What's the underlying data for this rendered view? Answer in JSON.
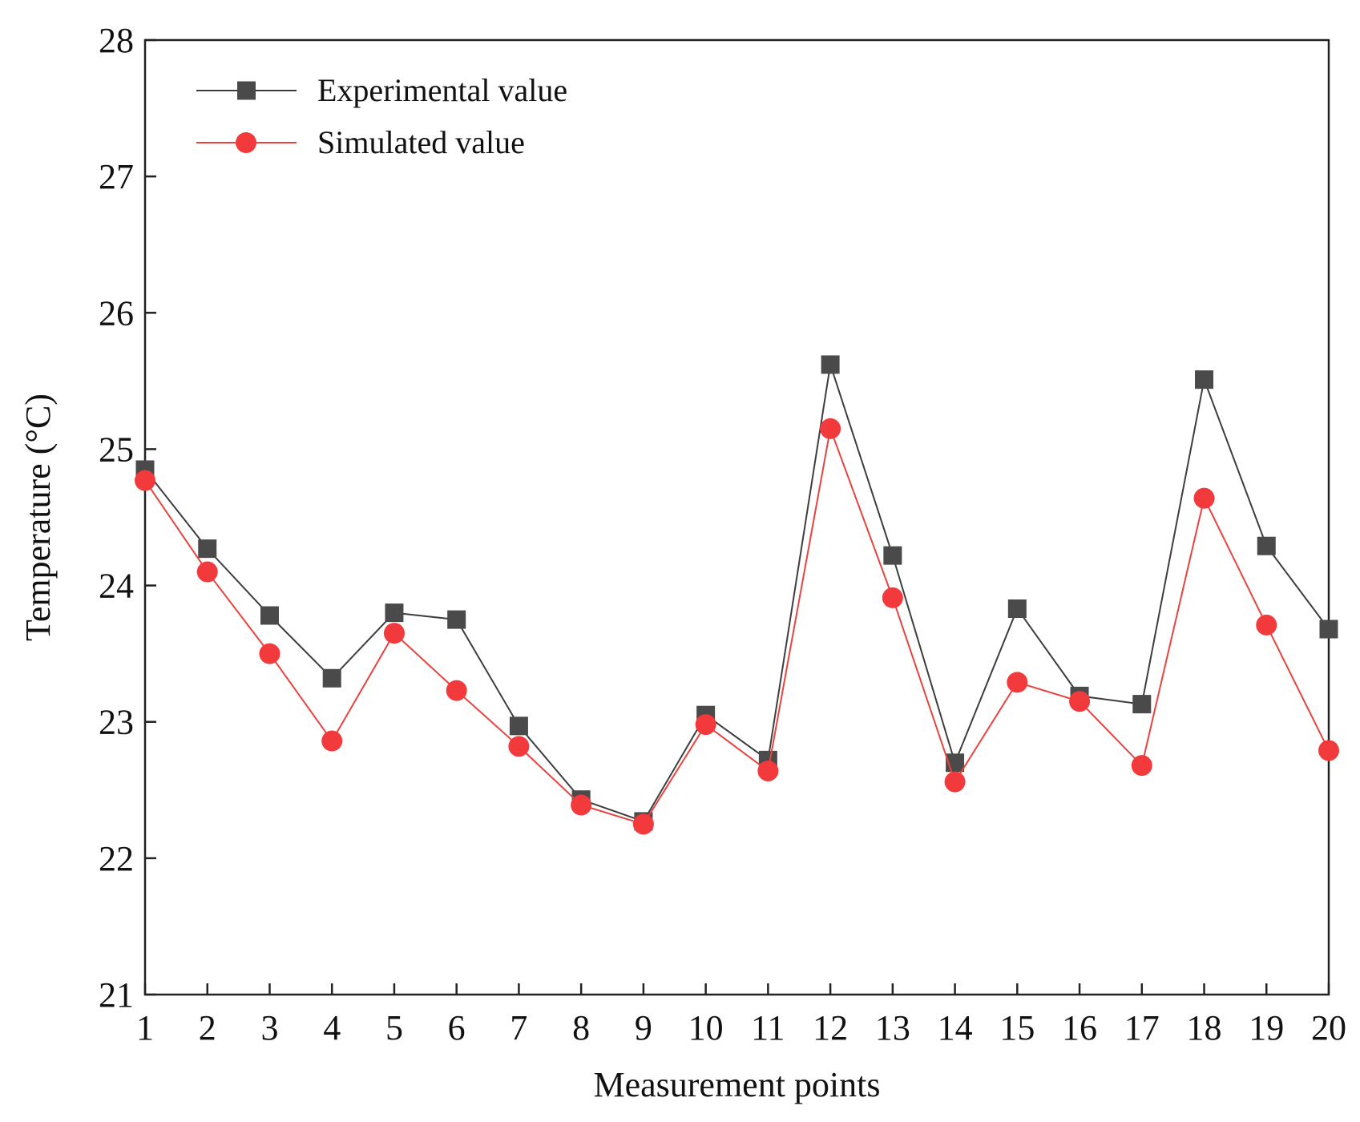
{
  "chart_data": {
    "type": "line",
    "title": "",
    "xlabel": "Measurement points",
    "ylabel": "Temperature (°C)",
    "x": [
      1,
      2,
      3,
      4,
      5,
      6,
      7,
      8,
      9,
      10,
      11,
      12,
      13,
      14,
      15,
      16,
      17,
      18,
      19,
      20
    ],
    "xlim": [
      1,
      20
    ],
    "ylim": [
      21,
      28
    ],
    "yticks": [
      21,
      22,
      23,
      24,
      25,
      26,
      27,
      28
    ],
    "legend_position": "top-left",
    "grid": false,
    "series": [
      {
        "name": "Experimental value",
        "marker": "square",
        "color": "#3d3d3d",
        "markerColor": "#4a4a4a",
        "values": [
          24.85,
          24.27,
          23.78,
          23.32,
          23.8,
          23.75,
          22.97,
          22.43,
          22.27,
          23.05,
          22.72,
          25.62,
          24.22,
          22.7,
          23.83,
          23.19,
          23.13,
          25.51,
          24.29,
          23.68
        ]
      },
      {
        "name": "Simulated value",
        "marker": "circle",
        "color": "#e8433f",
        "markerColor": "#f2393b",
        "values": [
          24.77,
          24.1,
          23.5,
          22.86,
          23.65,
          23.23,
          22.82,
          22.39,
          22.25,
          22.98,
          22.64,
          25.15,
          23.91,
          22.56,
          23.29,
          23.15,
          22.68,
          24.64,
          23.71,
          22.79
        ]
      }
    ]
  }
}
